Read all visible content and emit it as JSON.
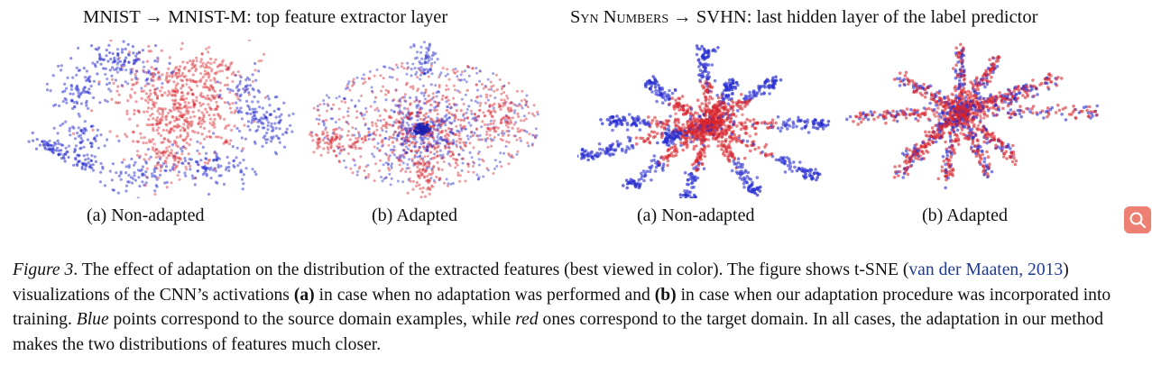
{
  "groups": [
    {
      "title_a": "MNIST → MNIST-M: top feature extractor layer",
      "panels": [
        {
          "label": "(a) Non-adapted"
        },
        {
          "label": "(b) Adapted"
        }
      ]
    },
    {
      "title_sc": "Syn Numbers",
      "title_rest": " → SVHN: last hidden layer of the label predictor",
      "panels": [
        {
          "label": "(a) Non-adapted"
        },
        {
          "label": "(b) Adapted"
        }
      ]
    }
  ],
  "colors": {
    "source": "#2a2fd0",
    "target": "#d9262e"
  },
  "legend_semantics": {
    "source": "Blue",
    "target": "red"
  },
  "caption": {
    "fig": "Figure 3",
    "t1": ". The effect of adaptation on the distribution of the extracted features (best viewed in color). The figure shows t-SNE (",
    "ref": "van der Maaten, 2013",
    "t2": ") visualizations of the CNN’s activations ",
    "a": "(a)",
    "t3": " in case when no adaptation was performed and ",
    "b": "(b)",
    "t4": " in case when our adaptation procedure was incorporated into training. ",
    "blue": "Blue",
    "t5": " points correspond to the source domain examples, while ",
    "red": "red",
    "t6": " ones correspond to the target domain. In all cases, the adaptation in our method makes the two distributions of features much closer."
  },
  "search": {
    "icon": "search-icon"
  }
}
